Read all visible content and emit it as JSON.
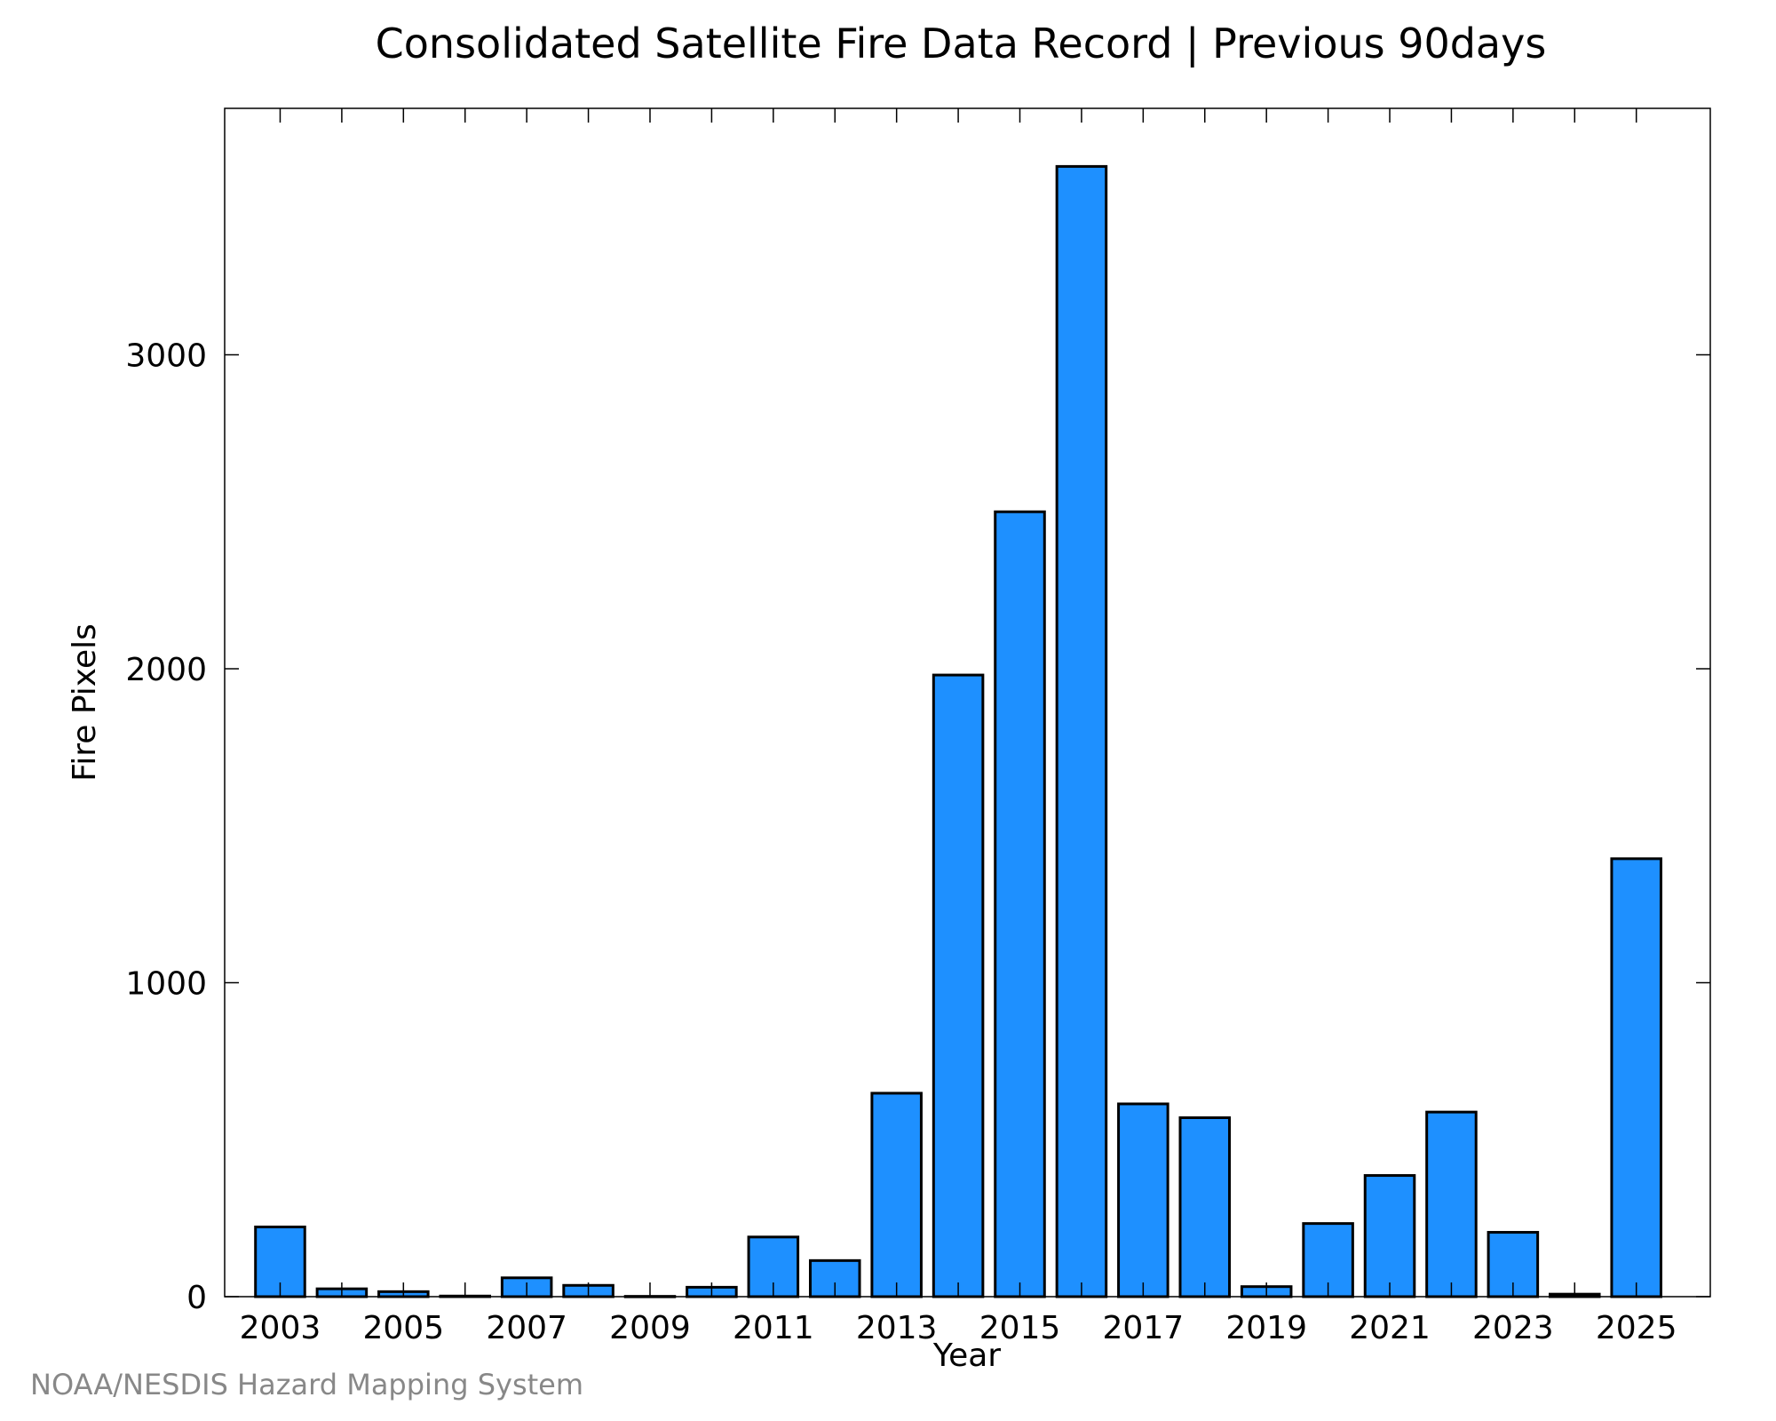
{
  "chart_data": {
    "type": "bar",
    "title": "Consolidated Satellite Fire Data Record | Previous 90days",
    "xlabel": "Year",
    "ylabel": "Fire Pixels",
    "categories": [
      "2003",
      "2004",
      "2005",
      "2006",
      "2007",
      "2008",
      "2009",
      "2010",
      "2011",
      "2012",
      "2013",
      "2014",
      "2015",
      "2016",
      "2017",
      "2018",
      "2019",
      "2020",
      "2021",
      "2022",
      "2023",
      "2024",
      "2025"
    ],
    "x_tick_labels": [
      "2003",
      "2005",
      "2007",
      "2009",
      "2011",
      "2013",
      "2015",
      "2017",
      "2019",
      "2021",
      "2023",
      "2025"
    ],
    "y_tick_labels": [
      "0",
      "1000",
      "2000",
      "3000"
    ],
    "values": [
      222,
      25,
      16,
      2,
      60,
      36,
      1,
      30,
      190,
      115,
      648,
      1980,
      2500,
      3600,
      614,
      570,
      32,
      233,
      386,
      588,
      205,
      8,
      1395
    ],
    "ylim": [
      0,
      3785
    ],
    "xlim": [
      2002.1,
      2026.2
    ],
    "grid": false,
    "legend": "none",
    "bar_color": "#1e90ff",
    "edge_color": "#000000"
  },
  "credit": "NOAA/NESDIS Hazard Mapping System"
}
